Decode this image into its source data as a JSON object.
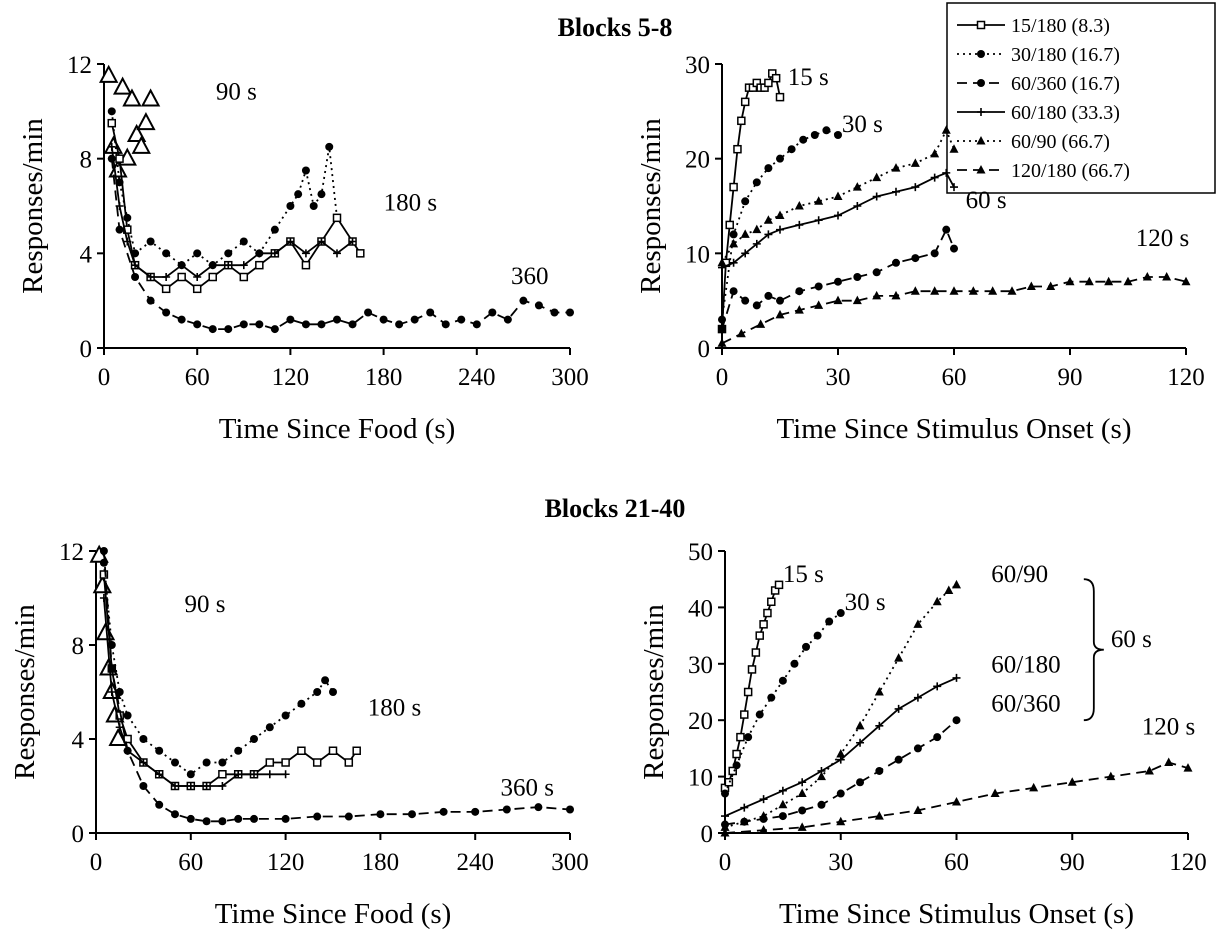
{
  "section_titles": [
    "Blocks 5-8",
    "Blocks 21-40"
  ],
  "legend": [
    {
      "label": "15/180 (8.3)",
      "dash": "",
      "marker": "square"
    },
    {
      "label": "30/180 (16.7)",
      "dash": "2,4",
      "marker": "circle"
    },
    {
      "label": "60/360 (16.7)",
      "dash": "10,6",
      "marker": "circle"
    },
    {
      "label": "60/180 (33.3)",
      "dash": "",
      "marker": "plus"
    },
    {
      "label": "60/90 (66.7)",
      "dash": "2,4",
      "marker": "triangle"
    },
    {
      "label": "120/180 (66.7)",
      "dash": "10,6",
      "marker": "triangle"
    }
  ],
  "chart_data": [
    {
      "type": "line",
      "section": "Blocks 5-8",
      "xlabel": "Time Since Food (s)",
      "ylabel": "Responses/min",
      "xlim": [
        0,
        300
      ],
      "ylim": [
        0,
        12
      ],
      "xticks": [
        0,
        60,
        120,
        180,
        240,
        300
      ],
      "yticks": [
        0,
        4,
        8,
        12
      ],
      "annotations": [
        {
          "text": "90 s",
          "x": 72,
          "y": 10.5
        },
        {
          "text": "180 s",
          "x": 180,
          "y": 5.8
        },
        {
          "text": "360",
          "x": 262,
          "y": 2.7
        }
      ],
      "series": [
        {
          "marker": "triangle_open",
          "dash": "",
          "x": [
            3,
            6,
            9,
            12,
            15,
            18,
            21,
            24,
            27,
            30
          ],
          "y": [
            11.5,
            8.5,
            7.5,
            11.0,
            8.0,
            10.5,
            9.0,
            8.5,
            9.5,
            10.5
          ]
        },
        {
          "marker": "circle",
          "dash": "2,4",
          "x": [
            5,
            10,
            15,
            20,
            30,
            40,
            50,
            60,
            70,
            80,
            90,
            100,
            110,
            120,
            125,
            130,
            135,
            140,
            145,
            150
          ],
          "y": [
            10.0,
            7.0,
            5.5,
            4.0,
            4.5,
            4.0,
            3.5,
            4.0,
            3.5,
            4.0,
            4.5,
            4.0,
            5.0,
            6.0,
            6.5,
            7.5,
            6.0,
            6.5,
            8.5,
            5.5
          ]
        },
        {
          "marker": "square",
          "dash": "",
          "x": [
            5,
            10,
            15,
            20,
            30,
            40,
            50,
            60,
            70,
            80,
            90,
            100,
            110,
            120,
            130,
            140,
            150,
            160,
            165
          ],
          "y": [
            9.5,
            8.0,
            5.0,
            3.5,
            3.0,
            2.5,
            3.0,
            2.5,
            3.0,
            3.5,
            3.0,
            3.5,
            4.0,
            4.5,
            3.5,
            4.5,
            5.5,
            4.5,
            4.0
          ]
        },
        {
          "marker": "plus",
          "dash": "",
          "x": [
            5,
            10,
            15,
            20,
            30,
            40,
            50,
            60,
            70,
            80,
            90,
            100,
            110,
            120,
            130,
            140,
            150,
            160
          ],
          "y": [
            8.5,
            6.0,
            4.5,
            3.5,
            3.0,
            3.0,
            3.5,
            3.0,
            3.5,
            3.5,
            3.5,
            4.0,
            4.0,
            4.5,
            4.0,
            4.5,
            4.0,
            4.5
          ]
        },
        {
          "marker": "circle",
          "dash": "10,6",
          "x": [
            5,
            10,
            20,
            30,
            40,
            50,
            60,
            70,
            80,
            90,
            100,
            110,
            120,
            130,
            140,
            150,
            160,
            170,
            180,
            190,
            200,
            210,
            220,
            230,
            240,
            250,
            260,
            270,
            280,
            290,
            300
          ],
          "y": [
            8.0,
            5.0,
            3.0,
            2.0,
            1.5,
            1.2,
            1.0,
            0.8,
            0.8,
            1.0,
            1.0,
            0.8,
            1.2,
            1.0,
            1.0,
            1.2,
            1.0,
            1.5,
            1.2,
            1.0,
            1.2,
            1.5,
            1.0,
            1.2,
            1.0,
            1.5,
            1.2,
            2.0,
            1.8,
            1.5,
            1.5
          ]
        }
      ]
    },
    {
      "type": "line",
      "section": "Blocks 5-8",
      "xlabel": "Time Since Stimulus Onset (s)",
      "ylabel": "Responses/min",
      "xlim": [
        0,
        120
      ],
      "ylim": [
        0,
        30
      ],
      "xticks": [
        0,
        30,
        60,
        90,
        120
      ],
      "yticks": [
        0,
        10,
        20,
        30
      ],
      "annotations": [
        {
          "text": "15 s",
          "x": 17,
          "y": 27.8
        },
        {
          "text": "30 s",
          "x": 31,
          "y": 22.8
        },
        {
          "text": "60 s",
          "x": 63,
          "y": 14.8
        },
        {
          "text": "120 s",
          "x": 107,
          "y": 10.8
        }
      ],
      "series": [
        {
          "label": "15/180 (8.3)",
          "marker": "square",
          "dash": "",
          "x": [
            0,
            1,
            2,
            3,
            4,
            5,
            6,
            7,
            8,
            9,
            10,
            11,
            12,
            13,
            14,
            15
          ],
          "y": [
            2,
            9,
            13,
            17,
            21,
            24,
            26,
            27.5,
            27.5,
            28,
            27.5,
            27.5,
            28,
            29,
            28.5,
            26.5
          ]
        },
        {
          "label": "30/180 (16.7)",
          "marker": "circle",
          "dash": "2,4",
          "x": [
            0,
            3,
            6,
            9,
            12,
            15,
            18,
            21,
            24,
            27,
            30
          ],
          "y": [
            3,
            12,
            15.5,
            17.5,
            19,
            20,
            21,
            22,
            22.5,
            23,
            22.5
          ]
        },
        {
          "label": "60/360 (16.7)",
          "marker": "circle",
          "dash": "10,6",
          "x": [
            0,
            3,
            6,
            9,
            12,
            15,
            20,
            25,
            30,
            35,
            40,
            45,
            50,
            55,
            58,
            60
          ],
          "y": [
            2,
            6,
            5,
            4.5,
            5.5,
            5,
            6,
            6.5,
            7,
            7.5,
            8,
            9,
            9.5,
            10,
            12.5,
            10.5
          ]
        },
        {
          "label": "60/180 (33.3)",
          "marker": "plus",
          "dash": "",
          "x": [
            0,
            3,
            6,
            9,
            12,
            15,
            20,
            25,
            30,
            35,
            40,
            45,
            50,
            55,
            58,
            60
          ],
          "y": [
            8.5,
            9,
            10,
            11,
            12,
            12.5,
            13,
            13.5,
            14,
            15,
            16,
            16.5,
            17,
            18,
            18.5,
            17
          ]
        },
        {
          "label": "60/90 (66.7)",
          "marker": "triangle",
          "dash": "2,4",
          "x": [
            0,
            3,
            6,
            9,
            12,
            15,
            20,
            25,
            30,
            35,
            40,
            45,
            50,
            55,
            58,
            60
          ],
          "y": [
            9,
            11,
            12,
            12.5,
            13.5,
            14,
            15,
            15.5,
            16,
            17,
            18,
            19,
            19.5,
            20.5,
            23,
            21
          ]
        },
        {
          "label": "120/180 (66.7)",
          "marker": "triangle",
          "dash": "10,6",
          "x": [
            0,
            5,
            10,
            15,
            20,
            25,
            30,
            35,
            40,
            45,
            50,
            55,
            60,
            65,
            70,
            75,
            80,
            85,
            90,
            95,
            100,
            105,
            110,
            115,
            120
          ],
          "y": [
            0.5,
            1.5,
            2.5,
            3.5,
            4,
            4.5,
            5,
            5,
            5.5,
            5.5,
            6,
            6,
            6,
            6,
            6,
            6,
            6.5,
            6.5,
            7,
            7,
            7,
            7,
            7.5,
            7.5,
            7
          ]
        }
      ]
    },
    {
      "type": "line",
      "section": "Blocks 21-40",
      "xlabel": "Time Since Food (s)",
      "ylabel": "Responses/min",
      "xlim": [
        0,
        300
      ],
      "ylim": [
        0,
        12
      ],
      "xticks": [
        0,
        60,
        120,
        180,
        240,
        300
      ],
      "yticks": [
        0,
        4,
        8,
        12
      ],
      "annotations": [
        {
          "text": "90 s",
          "x": 56,
          "y": 9.4
        },
        {
          "text": "180 s",
          "x": 172,
          "y": 5.0
        },
        {
          "text": "360 s",
          "x": 256,
          "y": 1.6
        }
      ],
      "series": [
        {
          "marker": "triangle_open",
          "dash": "",
          "x": [
            2,
            4,
            6,
            8,
            10,
            12,
            14
          ],
          "y": [
            11.8,
            10.5,
            8.5,
            7.0,
            6.0,
            5.0,
            4.0
          ]
        },
        {
          "marker": "circle",
          "dash": "2,4",
          "x": [
            5,
            10,
            15,
            20,
            30,
            40,
            50,
            60,
            70,
            80,
            90,
            100,
            110,
            120,
            130,
            140,
            145,
            150
          ],
          "y": [
            11.5,
            8.0,
            6.0,
            5.0,
            4.0,
            3.5,
            3.0,
            2.5,
            3.0,
            3.0,
            3.5,
            4.0,
            4.5,
            5.0,
            5.5,
            6.0,
            6.5,
            6.0
          ]
        },
        {
          "marker": "square",
          "dash": "",
          "x": [
            5,
            10,
            15,
            20,
            30,
            40,
            50,
            60,
            70,
            80,
            90,
            100,
            110,
            120,
            130,
            140,
            150,
            160,
            165
          ],
          "y": [
            11.0,
            7.0,
            5.0,
            4.0,
            3.0,
            2.5,
            2.0,
            2.0,
            2.0,
            2.5,
            2.5,
            2.5,
            3.0,
            3.0,
            3.5,
            3.0,
            3.5,
            3.0,
            3.5
          ]
        },
        {
          "marker": "plus",
          "dash": "",
          "x": [
            5,
            10,
            15,
            20,
            30,
            40,
            50,
            60,
            70,
            80,
            90,
            100,
            110,
            120
          ],
          "y": [
            10.0,
            6.0,
            4.5,
            3.5,
            3.0,
            2.5,
            2.0,
            2.0,
            2.0,
            2.0,
            2.5,
            2.5,
            2.5,
            2.5
          ]
        },
        {
          "marker": "circle",
          "dash": "10,6",
          "x": [
            5,
            10,
            20,
            30,
            40,
            50,
            60,
            70,
            80,
            90,
            100,
            120,
            140,
            160,
            180,
            200,
            220,
            240,
            260,
            280,
            300
          ],
          "y": [
            12.0,
            7.0,
            3.5,
            2.0,
            1.2,
            0.8,
            0.6,
            0.5,
            0.5,
            0.6,
            0.6,
            0.6,
            0.7,
            0.7,
            0.8,
            0.8,
            0.9,
            0.9,
            1.0,
            1.1,
            1.0
          ]
        }
      ]
    },
    {
      "type": "line",
      "section": "Blocks 21-40",
      "xlabel": "Time Since Stimulus Onset (s)",
      "ylabel": "Responses/min",
      "xlim": [
        0,
        120
      ],
      "ylim": [
        0,
        50
      ],
      "xticks": [
        0,
        30,
        60,
        90,
        120
      ],
      "yticks": [
        0,
        10,
        20,
        30,
        40,
        50
      ],
      "annotations": [
        {
          "text": "15 s",
          "x": 15,
          "y": 44.5
        },
        {
          "text": "30 s",
          "x": 31,
          "y": 39.5
        },
        {
          "text": "60/90",
          "x": 69,
          "y": 44.5
        },
        {
          "text": "60/180",
          "x": 69,
          "y": 28.5
        },
        {
          "text": "60/360",
          "x": 69,
          "y": 21.5
        },
        {
          "text": "60 s",
          "x": 100,
          "y": 33.0
        },
        {
          "text": "120 s",
          "x": 108,
          "y": 17.5
        }
      ],
      "brace": {
        "x": 93,
        "y_top": 45,
        "y_bottom": 20
      },
      "series": [
        {
          "label": "15/180 (8.3)",
          "marker": "square",
          "dash": "",
          "x": [
            0,
            1,
            2,
            3,
            4,
            5,
            6,
            7,
            8,
            9,
            10,
            11,
            12,
            13,
            14
          ],
          "y": [
            8,
            9,
            11,
            14,
            17,
            21,
            25,
            29,
            32,
            35,
            37,
            39,
            41,
            43,
            44
          ]
        },
        {
          "label": "30/180 (16.7)",
          "marker": "circle",
          "dash": "2,4",
          "x": [
            0,
            3,
            6,
            9,
            12,
            15,
            18,
            21,
            24,
            27,
            30
          ],
          "y": [
            7,
            12,
            17,
            21,
            24,
            27,
            30,
            33,
            35,
            37.5,
            39
          ]
        },
        {
          "label": "60/360 (16.7)",
          "marker": "circle",
          "dash": "10,6",
          "x": [
            0,
            5,
            10,
            15,
            20,
            25,
            30,
            35,
            40,
            45,
            50,
            55,
            60
          ],
          "y": [
            1.5,
            2,
            2.5,
            3,
            4,
            5,
            7,
            9,
            11,
            13,
            15,
            17,
            20
          ]
        },
        {
          "label": "60/180 (33.3)",
          "marker": "plus",
          "dash": "",
          "x": [
            0,
            5,
            10,
            15,
            20,
            25,
            30,
            35,
            40,
            45,
            50,
            55,
            60
          ],
          "y": [
            3,
            4.5,
            6,
            7.5,
            9,
            11,
            13,
            16,
            19,
            22,
            24,
            26,
            27.5
          ]
        },
        {
          "label": "60/90 (66.7)",
          "marker": "triangle",
          "dash": "2,4",
          "x": [
            0,
            5,
            10,
            15,
            20,
            25,
            30,
            35,
            40,
            45,
            50,
            55,
            58,
            60
          ],
          "y": [
            1,
            2,
            3,
            5,
            7,
            10,
            14,
            19,
            25,
            31,
            37,
            41,
            43,
            44
          ]
        },
        {
          "label": "120/180 (66.7)",
          "marker": "triangle",
          "dash": "10,6",
          "x": [
            0,
            10,
            20,
            30,
            40,
            50,
            60,
            70,
            80,
            90,
            100,
            110,
            115,
            120
          ],
          "y": [
            0,
            0.5,
            1,
            2,
            3,
            4,
            5.5,
            7,
            8,
            9,
            10,
            11,
            12.5,
            11.5
          ]
        }
      ]
    }
  ]
}
